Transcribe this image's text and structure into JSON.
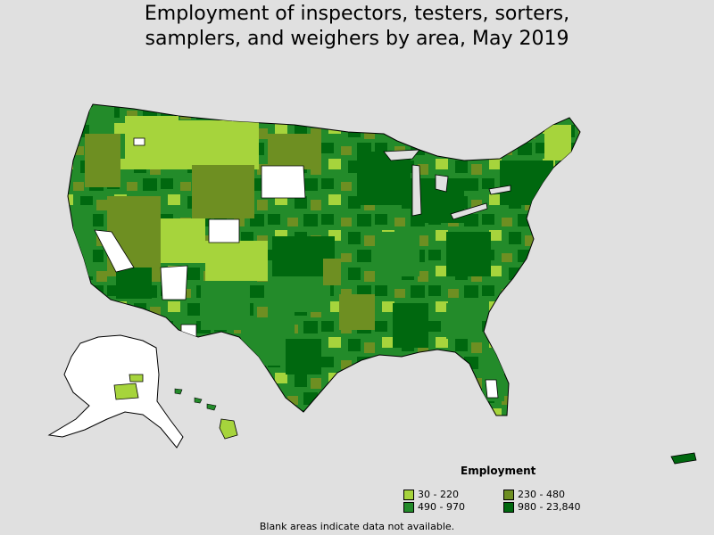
{
  "title": {
    "line1": "Employment of inspectors, testers, sorters,",
    "line2": "samplers, and weighers by area, May 2019"
  },
  "legend": {
    "title": "Employment",
    "items": [
      {
        "label": "30 - 220",
        "color": "#a6d43c"
      },
      {
        "label": "230 - 480",
        "color": "#6e8f22"
      },
      {
        "label": "490 - 970",
        "color": "#238b2a"
      },
      {
        "label": "980 - 23,840",
        "color": "#00680f"
      }
    ]
  },
  "footnote": "Blank areas indicate data not available.",
  "colors": {
    "background": "#e0e0e0",
    "no_data": "#ffffff",
    "border": "#000000"
  }
}
